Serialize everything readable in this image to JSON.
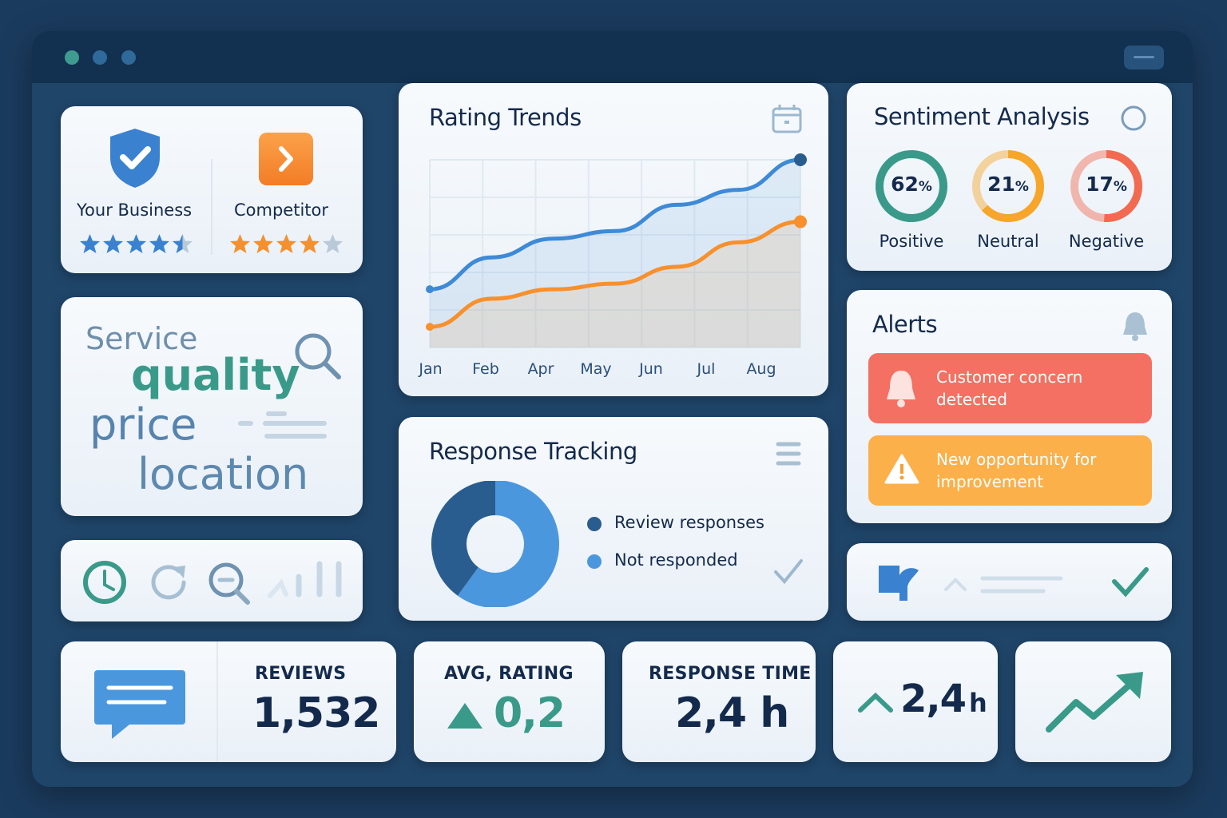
{
  "window": {
    "controls": [
      "close",
      "minimize",
      "maximize"
    ],
    "control_colors": [
      "#3d9b8f",
      "#2f6a9b",
      "#2f6a9b"
    ]
  },
  "comparison": {
    "your_business": {
      "label": "Your Business",
      "rating": 4.5,
      "icon": "shield-check-icon",
      "color": "#3a82d0"
    },
    "competitor": {
      "label": "Competitor",
      "rating": 4,
      "icon": "chevron-right-icon",
      "color": "#f5902f"
    }
  },
  "keywords": [
    "Service",
    "quality",
    "price",
    "location"
  ],
  "toolbar_icons": [
    "clock-icon",
    "refresh-icon",
    "zoom-out-icon",
    "signal-bars-icon"
  ],
  "rating_trends": {
    "title": "Rating Trends",
    "icon": "calendar-icon"
  },
  "chart_data": {
    "type": "area",
    "title": "Rating Trends",
    "categories": [
      "Jan",
      "Feb",
      "Apr",
      "May",
      "Jun",
      "Jul",
      "Aug"
    ],
    "series": [
      {
        "color": "#3f8ad6",
        "values": [
          31,
          48,
          58,
          62,
          76,
          84,
          100
        ]
      },
      {
        "color": "#f7902d",
        "values": [
          11,
          26,
          31,
          34,
          43,
          56,
          67
        ]
      }
    ],
    "ylim": [
      0,
      100
    ],
    "grid": true,
    "legend": "none"
  },
  "response_tracking": {
    "title": "Response Tracking",
    "menu_icon": "menu-icon",
    "legend": [
      {
        "label": "Review responses",
        "color": "#2a5d8f",
        "value": 40
      },
      {
        "label": "Not responded",
        "color": "#4b97dd",
        "value": 60
      }
    ]
  },
  "sentiment": {
    "title": "Sentiment Analysis",
    "items": [
      {
        "value": "62",
        "unit": "%",
        "label": "Positive",
        "percent": 62,
        "color": "#3a9a8a"
      },
      {
        "value": "21",
        "unit": "%",
        "label": "Neutral",
        "percent": 21,
        "color": "#f7a62a"
      },
      {
        "value": "17",
        "unit": "%",
        "label": "Negative",
        "percent": 17,
        "color": "#f26a50"
      }
    ]
  },
  "alerts": {
    "title": "Alerts",
    "items": [
      {
        "text": "Customer concern detected",
        "icon": "bell-icon",
        "color": "#f47062"
      },
      {
        "text": "New opportunity for improvement",
        "icon": "warning-icon",
        "color": "#fbb04a"
      }
    ]
  },
  "stats": {
    "reviews": {
      "label": "REVIEWS",
      "value": "1,532"
    },
    "avg_rating": {
      "label": "AVG, RATING",
      "value": "0,2"
    },
    "response_time": {
      "label": "RESPONSE TIME",
      "value": "2,4 h"
    },
    "trend": {
      "value": "2,4",
      "unit": "h"
    }
  }
}
